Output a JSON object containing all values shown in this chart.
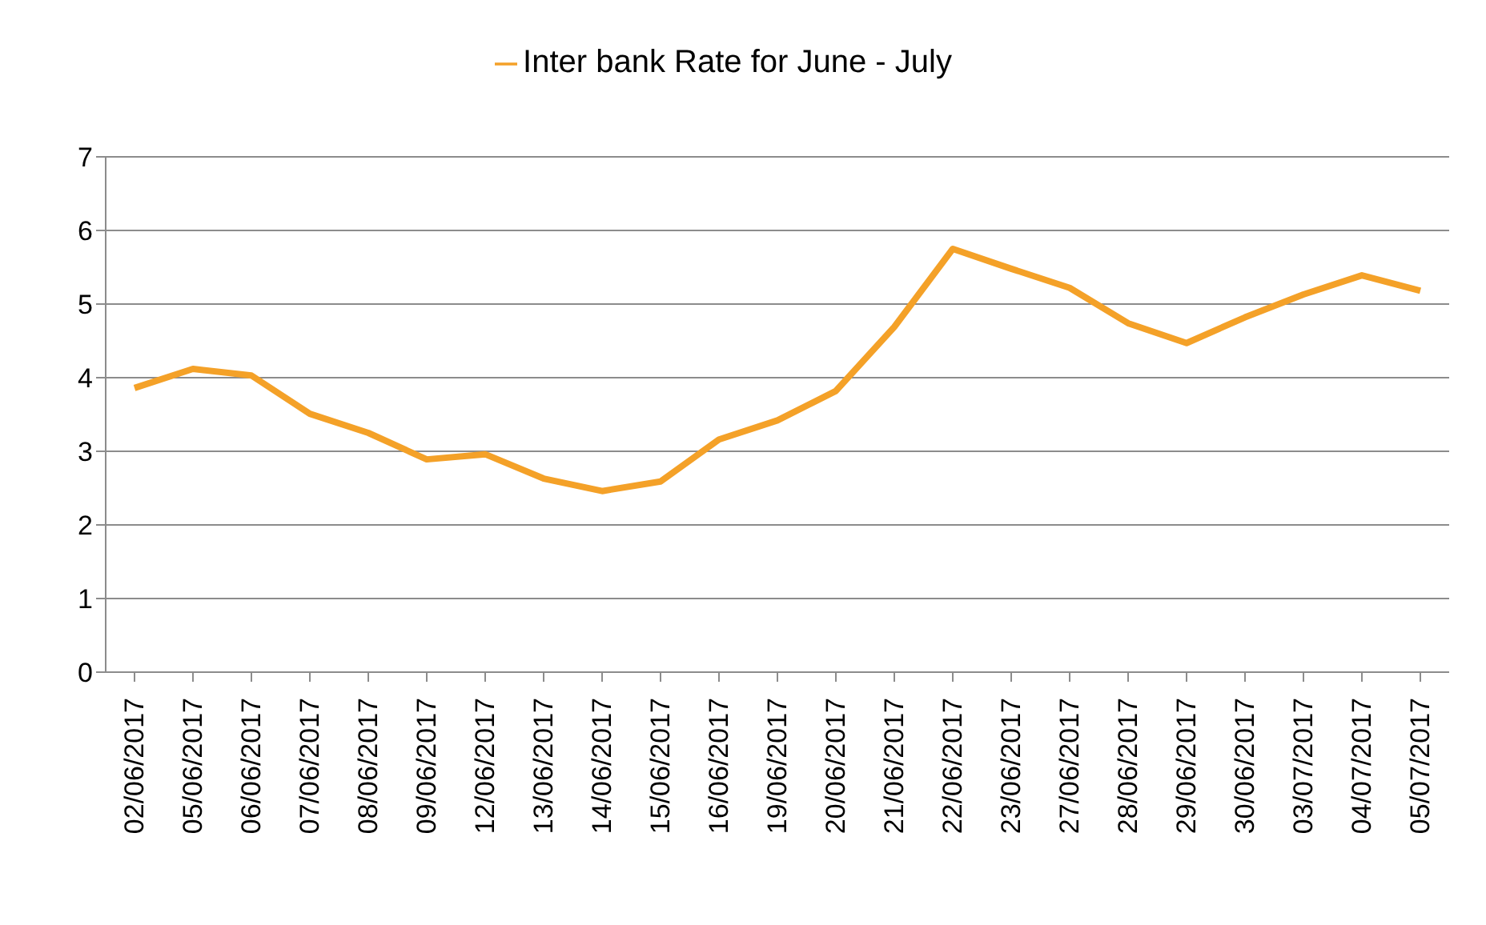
{
  "chart_data": {
    "type": "line",
    "categories": [
      "02/06/2017",
      "05/06/2017",
      "06/06/2017",
      "07/06/2017",
      "08/06/2017",
      "09/06/2017",
      "12/06/2017",
      "13/06/2017",
      "14/06/2017",
      "15/06/2017",
      "16/06/2017",
      "19/06/2017",
      "20/06/2017",
      "21/06/2017",
      "22/06/2017",
      "23/06/2017",
      "27/06/2017",
      "28/06/2017",
      "29/06/2017",
      "30/06/2017",
      "03/07/2017",
      "04/07/2017",
      "05/07/2017"
    ],
    "series": [
      {
        "name": "Inter bank Rate for June - July",
        "color": "#f4a128",
        "values": [
          3.86,
          4.12,
          4.03,
          3.51,
          3.25,
          2.89,
          2.96,
          2.63,
          2.46,
          2.59,
          3.16,
          3.42,
          3.82,
          4.69,
          5.75,
          5.48,
          5.22,
          4.74,
          4.47,
          4.82,
          5.13,
          5.39,
          5.18
        ]
      }
    ],
    "ylim": [
      0,
      7
    ],
    "yticks": [
      0,
      1,
      2,
      3,
      4,
      5,
      6,
      7
    ],
    "grid": "y",
    "legend": "top",
    "marker": "none",
    "line_style": "solid"
  }
}
